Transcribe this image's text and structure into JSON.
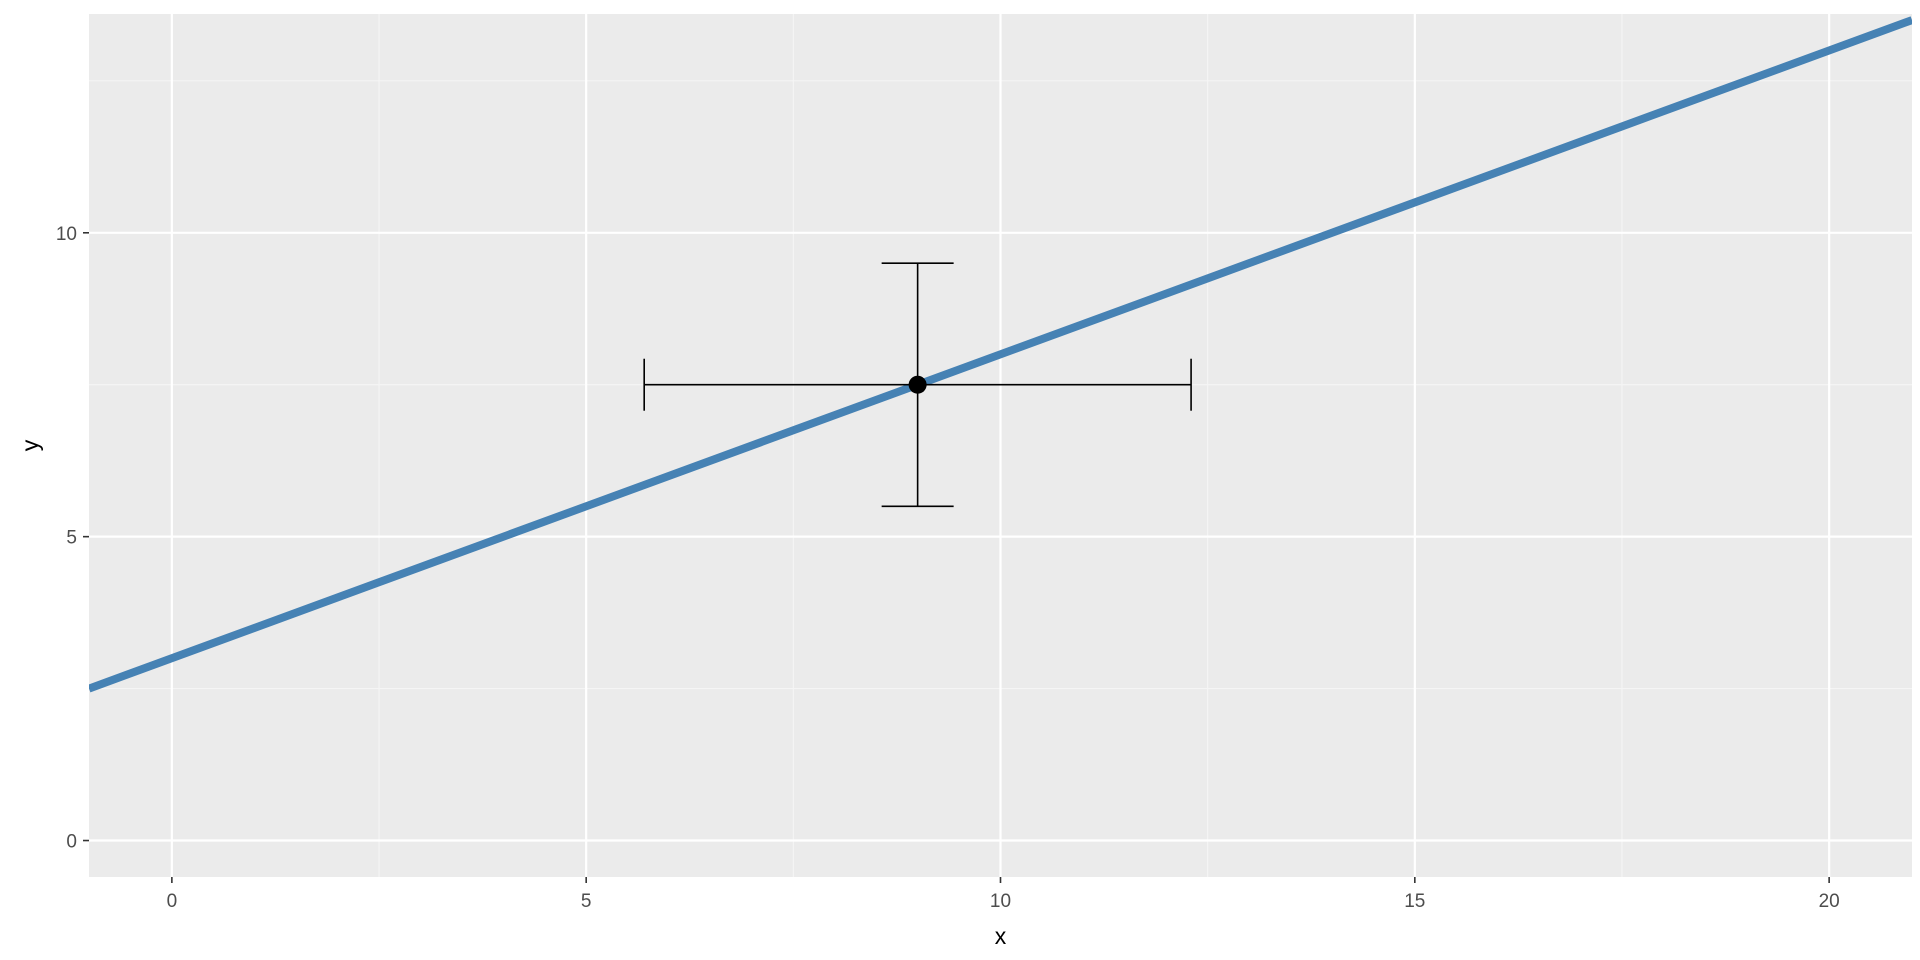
{
  "chart_data": {
    "type": "line",
    "xlabel": "x",
    "ylabel": "y",
    "xlim": [
      -1,
      21
    ],
    "ylim": [
      -0.6,
      13.6
    ],
    "x_ticks": [
      0,
      5,
      10,
      15,
      20
    ],
    "x_tick_labels": [
      "0",
      "5",
      "10",
      "15",
      "20"
    ],
    "x_minor_ticks": [
      2.5,
      7.5,
      12.5,
      17.5
    ],
    "y_ticks": [
      0,
      5,
      10
    ],
    "y_tick_labels": [
      "0",
      "5",
      "10"
    ],
    "y_minor_ticks": [
      2.5,
      7.5,
      12.5
    ],
    "grid": true,
    "line": {
      "intercept": 3,
      "slope": 0.5,
      "color": "#4682B4"
    },
    "point": {
      "x": 9,
      "y": 7.5,
      "color": "#000000"
    },
    "errorbar_y": {
      "x": 9,
      "ymin": 5.5,
      "ymax": 9.5
    },
    "errorbar_x": {
      "y": 7.5,
      "xmin": 5.7,
      "xmax": 12.3
    },
    "colors": {
      "panel_background": "#EBEBEB",
      "grid_major": "#FFFFFF",
      "grid_minor": "#F5F5F5",
      "tick_text": "#4D4D4D",
      "axis_ticks": "#333333"
    }
  }
}
